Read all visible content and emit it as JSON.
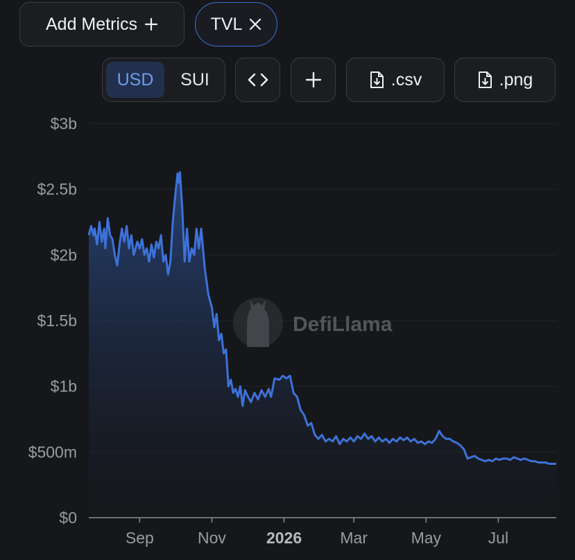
{
  "toolbar": {
    "add_metrics_label": "Add Metrics",
    "add_metrics_icon": "plus-icon",
    "tvl_label": "TVL",
    "tvl_icon": "close-icon",
    "currency_options": [
      "USD",
      "SUI"
    ],
    "currency_selected": "USD",
    "embed_icon": "code-icon",
    "add_icon": "plus-icon",
    "csv_label": ".csv",
    "csv_icon": "file-download-icon",
    "png_label": ".png",
    "png_icon": "file-download-icon"
  },
  "watermark": {
    "text": "DefiLlama",
    "icon": "llama-logo"
  },
  "colors": {
    "background": "#16171b",
    "line": "#3d72d9",
    "accent": "#3b6fd6",
    "selected_segment": "#22304d"
  },
  "chart_data": {
    "type": "area",
    "title": "",
    "xlabel": "",
    "ylabel": "",
    "y_unit": "USD",
    "ylim": [
      0,
      3000000000
    ],
    "y_tick_values": [
      0,
      500000000,
      1000000000,
      1500000000,
      2000000000,
      2500000000,
      3000000000
    ],
    "y_tick_labels": [
      "$0",
      "$500m",
      "$1b",
      "$1.5b",
      "$2b",
      "$2.5b",
      "$3b"
    ],
    "x_range": [
      "2025-07-20",
      "2026-08-19"
    ],
    "x_ticks": [
      {
        "date": "2025-09-01",
        "label": "Sep",
        "bold": false
      },
      {
        "date": "2025-11-01",
        "label": "Nov",
        "bold": false
      },
      {
        "date": "2026-01-01",
        "label": "2026",
        "bold": true
      },
      {
        "date": "2026-03-01",
        "label": "Mar",
        "bold": false
      },
      {
        "date": "2026-05-01",
        "label": "May",
        "bold": false
      },
      {
        "date": "2026-07-01",
        "label": "Jul",
        "bold": false
      }
    ],
    "grid": true,
    "series": [
      {
        "values": [
          [
            "2025-07-20",
            2.15
          ],
          [
            "2025-07-22",
            2.22
          ],
          [
            "2025-07-24",
            2.15
          ],
          [
            "2025-07-25",
            2.2
          ],
          [
            "2025-07-27",
            2.08
          ],
          [
            "2025-07-29",
            2.25
          ],
          [
            "2025-07-31",
            2.1
          ],
          [
            "2025-08-02",
            2.2
          ],
          [
            "2025-08-03",
            2.05
          ],
          [
            "2025-08-05",
            2.28
          ],
          [
            "2025-08-07",
            2.15
          ],
          [
            "2025-08-09",
            2.12
          ],
          [
            "2025-08-11",
            2.0
          ],
          [
            "2025-08-13",
            1.92
          ],
          [
            "2025-08-15",
            2.08
          ],
          [
            "2025-08-17",
            2.2
          ],
          [
            "2025-08-19",
            2.1
          ],
          [
            "2025-08-21",
            2.22
          ],
          [
            "2025-08-23",
            2.05
          ],
          [
            "2025-08-25",
            2.15
          ],
          [
            "2025-08-27",
            2.0
          ],
          [
            "2025-08-30",
            2.1
          ],
          [
            "2025-09-01",
            2.05
          ],
          [
            "2025-09-03",
            2.12
          ],
          [
            "2025-09-05",
            2.0
          ],
          [
            "2025-09-07",
            2.05
          ],
          [
            "2025-09-09",
            1.95
          ],
          [
            "2025-09-11",
            2.08
          ],
          [
            "2025-09-13",
            1.98
          ],
          [
            "2025-09-15",
            2.1
          ],
          [
            "2025-09-17",
            2.05
          ],
          [
            "2025-09-19",
            2.15
          ],
          [
            "2025-09-21",
            1.95
          ],
          [
            "2025-09-23",
            2.0
          ],
          [
            "2025-09-25",
            1.85
          ],
          [
            "2025-09-27",
            1.95
          ],
          [
            "2025-09-29",
            2.25
          ],
          [
            "2025-10-01",
            2.45
          ],
          [
            "2025-10-03",
            2.62
          ],
          [
            "2025-10-04",
            2.55
          ],
          [
            "2025-10-05",
            2.63
          ],
          [
            "2025-10-07",
            2.35
          ],
          [
            "2025-10-09",
            1.95
          ],
          [
            "2025-10-11",
            2.2
          ],
          [
            "2025-10-13",
            1.95
          ],
          [
            "2025-10-15",
            2.05
          ],
          [
            "2025-10-17",
            2.0
          ],
          [
            "2025-10-19",
            2.2
          ],
          [
            "2025-10-21",
            2.05
          ],
          [
            "2025-10-23",
            2.2
          ],
          [
            "2025-10-26",
            1.9
          ],
          [
            "2025-10-29",
            1.7
          ],
          [
            "2025-11-01",
            1.6
          ],
          [
            "2025-11-03",
            1.45
          ],
          [
            "2025-11-05",
            1.55
          ],
          [
            "2025-11-07",
            1.35
          ],
          [
            "2025-11-09",
            1.4
          ],
          [
            "2025-11-11",
            1.25
          ],
          [
            "2025-11-13",
            1.28
          ],
          [
            "2025-11-15",
            1.0
          ],
          [
            "2025-11-17",
            1.05
          ],
          [
            "2025-11-19",
            0.95
          ],
          [
            "2025-11-21",
            0.98
          ],
          [
            "2025-11-23",
            0.92
          ],
          [
            "2025-11-25",
            1.0
          ],
          [
            "2025-11-27",
            0.85
          ],
          [
            "2025-11-29",
            0.97
          ],
          [
            "2025-12-01",
            0.93
          ],
          [
            "2025-12-04",
            0.88
          ],
          [
            "2025-12-07",
            0.95
          ],
          [
            "2025-12-10",
            0.9
          ],
          [
            "2025-12-13",
            0.97
          ],
          [
            "2025-12-16",
            0.92
          ],
          [
            "2025-12-19",
            0.98
          ],
          [
            "2025-12-21",
            0.92
          ],
          [
            "2025-12-24",
            1.06
          ],
          [
            "2025-12-28",
            1.05
          ],
          [
            "2025-12-31",
            1.08
          ],
          [
            "2026-01-03",
            1.06
          ],
          [
            "2026-01-06",
            1.08
          ],
          [
            "2026-01-09",
            0.95
          ],
          [
            "2026-01-12",
            0.92
          ],
          [
            "2026-01-15",
            0.82
          ],
          [
            "2026-01-18",
            0.78
          ],
          [
            "2026-01-21",
            0.7
          ],
          [
            "2026-01-24",
            0.72
          ],
          [
            "2026-01-27",
            0.63
          ],
          [
            "2026-01-30",
            0.6
          ],
          [
            "2026-02-02",
            0.63
          ],
          [
            "2026-02-05",
            0.58
          ],
          [
            "2026-02-08",
            0.6
          ],
          [
            "2026-02-11",
            0.58
          ],
          [
            "2026-02-14",
            0.62
          ],
          [
            "2026-02-17",
            0.56
          ],
          [
            "2026-02-20",
            0.6
          ],
          [
            "2026-02-23",
            0.58
          ],
          [
            "2026-02-26",
            0.61
          ],
          [
            "2026-03-01",
            0.58
          ],
          [
            "2026-03-04",
            0.62
          ],
          [
            "2026-03-07",
            0.6
          ],
          [
            "2026-03-10",
            0.64
          ],
          [
            "2026-03-13",
            0.6
          ],
          [
            "2026-03-16",
            0.62
          ],
          [
            "2026-03-19",
            0.58
          ],
          [
            "2026-03-22",
            0.61
          ],
          [
            "2026-03-25",
            0.58
          ],
          [
            "2026-03-28",
            0.6
          ],
          [
            "2026-03-31",
            0.57
          ],
          [
            "2026-04-03",
            0.6
          ],
          [
            "2026-04-06",
            0.58
          ],
          [
            "2026-04-09",
            0.61
          ],
          [
            "2026-04-12",
            0.59
          ],
          [
            "2026-04-15",
            0.61
          ],
          [
            "2026-04-18",
            0.58
          ],
          [
            "2026-04-21",
            0.6
          ],
          [
            "2026-04-24",
            0.57
          ],
          [
            "2026-04-27",
            0.58
          ],
          [
            "2026-04-30",
            0.56
          ],
          [
            "2026-05-03",
            0.58
          ],
          [
            "2026-05-06",
            0.57
          ],
          [
            "2026-05-09",
            0.6
          ],
          [
            "2026-05-12",
            0.66
          ],
          [
            "2026-05-15",
            0.62
          ],
          [
            "2026-05-18",
            0.6
          ],
          [
            "2026-05-21",
            0.6
          ],
          [
            "2026-05-24",
            0.58
          ],
          [
            "2026-05-27",
            0.57
          ],
          [
            "2026-05-30",
            0.55
          ],
          [
            "2026-06-02",
            0.52
          ],
          [
            "2026-06-05",
            0.45
          ],
          [
            "2026-06-08",
            0.46
          ],
          [
            "2026-06-11",
            0.47
          ],
          [
            "2026-06-14",
            0.45
          ],
          [
            "2026-06-17",
            0.44
          ],
          [
            "2026-06-20",
            0.43
          ],
          [
            "2026-06-23",
            0.44
          ],
          [
            "2026-06-26",
            0.43
          ],
          [
            "2026-06-29",
            0.45
          ],
          [
            "2026-07-02",
            0.44
          ],
          [
            "2026-07-05",
            0.45
          ],
          [
            "2026-07-08",
            0.45
          ],
          [
            "2026-07-11",
            0.44
          ],
          [
            "2026-07-14",
            0.46
          ],
          [
            "2026-07-17",
            0.45
          ],
          [
            "2026-07-20",
            0.44
          ],
          [
            "2026-07-23",
            0.45
          ],
          [
            "2026-07-26",
            0.44
          ],
          [
            "2026-07-29",
            0.43
          ],
          [
            "2026-08-01",
            0.43
          ],
          [
            "2026-08-04",
            0.42
          ],
          [
            "2026-08-07",
            0.42
          ],
          [
            "2026-08-10",
            0.42
          ],
          [
            "2026-08-13",
            0.41
          ],
          [
            "2026-08-16",
            0.41
          ],
          [
            "2026-08-19",
            0.41
          ]
        ],
        "value_multiplier": 1000000000
      }
    ]
  }
}
